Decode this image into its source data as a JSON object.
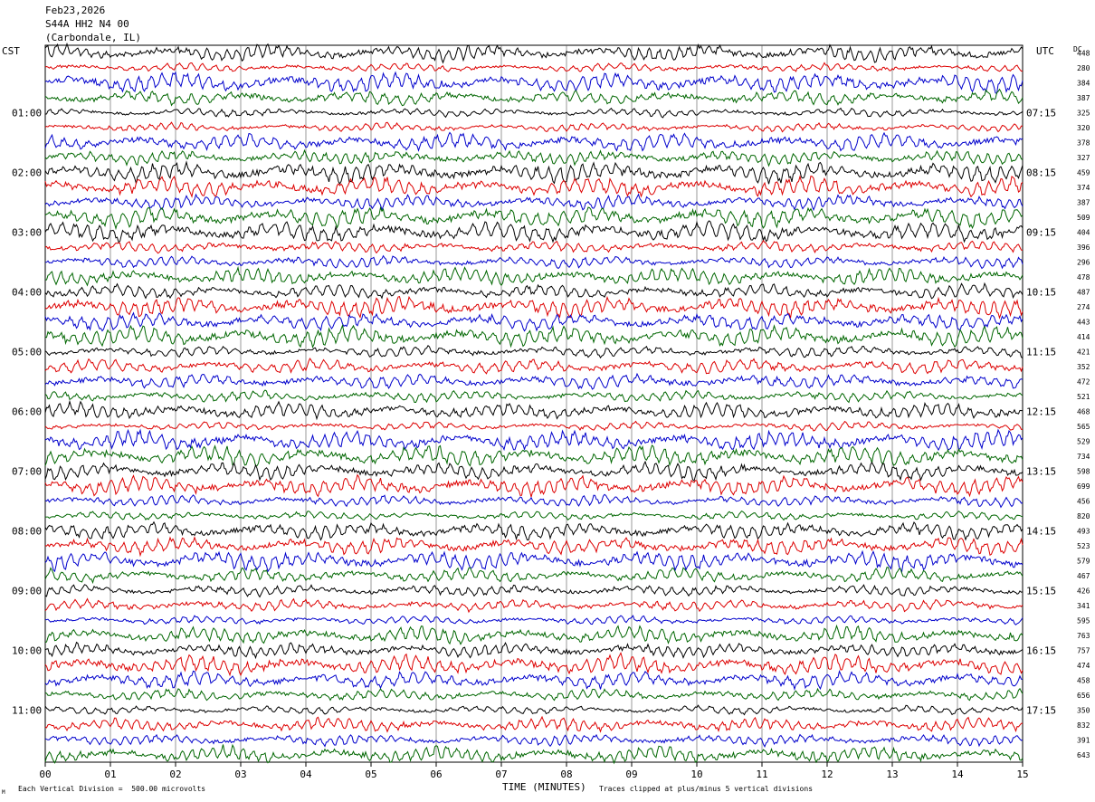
{
  "header": {
    "date": "Feb23,2026",
    "station": "S44A HH2 N4 00",
    "location": "(Carbondale, IL)"
  },
  "left_timezone": "CST",
  "right_timezone": "UTC",
  "dc_label": "DC",
  "x_axis_label": "TIME (MINUTES)",
  "footer": {
    "scale_text": "Each Vertical Division =  500.00 microvolts",
    "clip_text": "Traces clipped at plus/minus 5 vertical divisions",
    "logo_mark": "M"
  },
  "colors": {
    "trace_cycle": [
      "#000000",
      "#dd0000",
      "#0000cc",
      "#006600"
    ],
    "grid": "#555555"
  },
  "chart_data": {
    "type": "line",
    "title": "",
    "xlabel": "TIME (MINUTES)",
    "ylabel": "",
    "xlim": [
      0,
      15
    ],
    "x_ticks": [
      "00",
      "01",
      "02",
      "03",
      "04",
      "05",
      "06",
      "07",
      "08",
      "09",
      "10",
      "11",
      "12",
      "13",
      "14",
      "15"
    ],
    "traces_per_hour": 4,
    "trace_minutes": 15,
    "left_hour_labels": [
      "01:00",
      "02:00",
      "03:00",
      "04:00",
      "05:00",
      "06:00",
      "07:00",
      "08:00",
      "09:00",
      "10:00",
      "11:00"
    ],
    "right_hour_labels": [
      "07:15",
      "08:15",
      "09:15",
      "10:15",
      "11:15",
      "12:15",
      "13:15",
      "14:15",
      "15:15",
      "16:15",
      "17:15"
    ],
    "dc_offsets": [
      448,
      280,
      384,
      387,
      325,
      320,
      378,
      327,
      459,
      374,
      387,
      509,
      404,
      396,
      296,
      478,
      487,
      274,
      443,
      414,
      421,
      352,
      472,
      521,
      468,
      565,
      529,
      734,
      598,
      699,
      456,
      820,
      493,
      523,
      579,
      467,
      426,
      341,
      595,
      763,
      757,
      474,
      458,
      656,
      350,
      832,
      391,
      643
    ]
  }
}
